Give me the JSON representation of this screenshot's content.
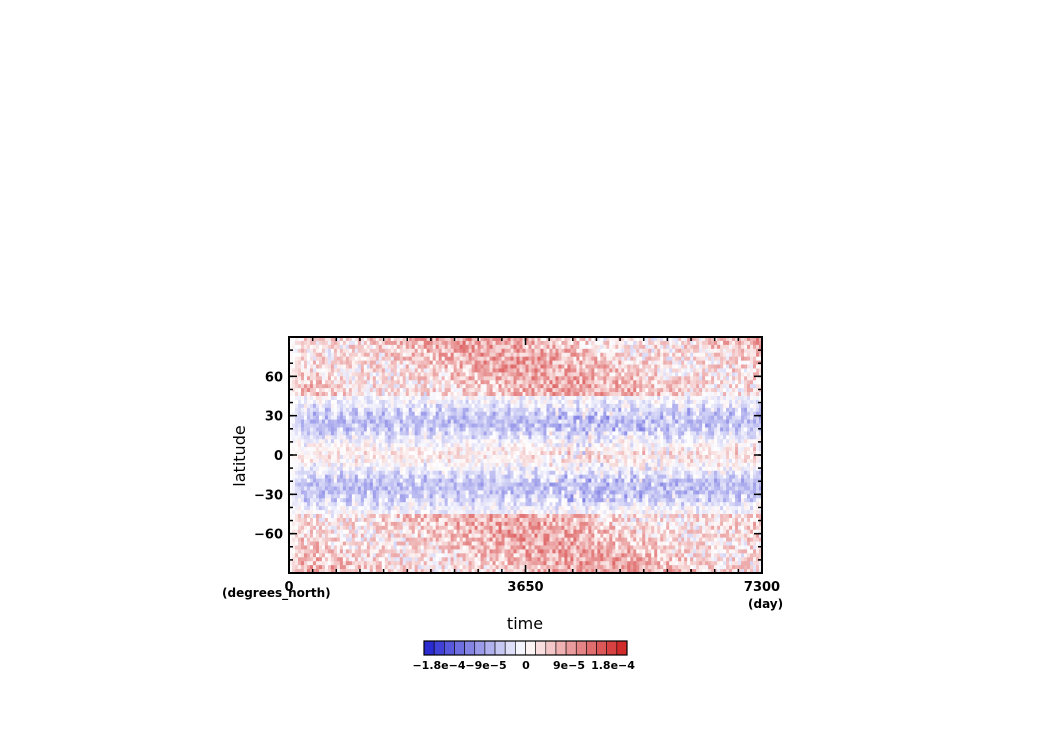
{
  "chart_data": {
    "type": "heatmap",
    "title": "",
    "xlabel": "time",
    "ylabel": "latitude",
    "x_unit": "(day)",
    "y_unit": "(degrees_north)",
    "xlim": [
      0,
      7300
    ],
    "ylim": [
      -90,
      90
    ],
    "x_ticks": [
      0,
      3650,
      7300
    ],
    "x_tick_labels": [
      "0",
      "3650",
      "7300"
    ],
    "y_ticks": [
      60,
      30,
      0,
      -30,
      -60
    ],
    "y_tick_labels": [
      "60",
      "30",
      "0",
      "−30",
      "−60"
    ],
    "colormap": {
      "min_color": "#2020d0",
      "mid_color": "#ffffff",
      "max_color": "#d02020",
      "levels": [
        -0.00018,
        -9e-05,
        0,
        9e-05,
        0.00018
      ],
      "tick_labels": [
        "−1.8e−4",
        "−9e−5",
        "0",
        "9e−5",
        "1.8e−4"
      ],
      "n_bins": 20
    },
    "description_of_field": {
      "high_latitudes_sign": "positive",
      "subtropics_30deg_sign": "negative",
      "equator_sign": "weakly positive, oscillating"
    }
  }
}
